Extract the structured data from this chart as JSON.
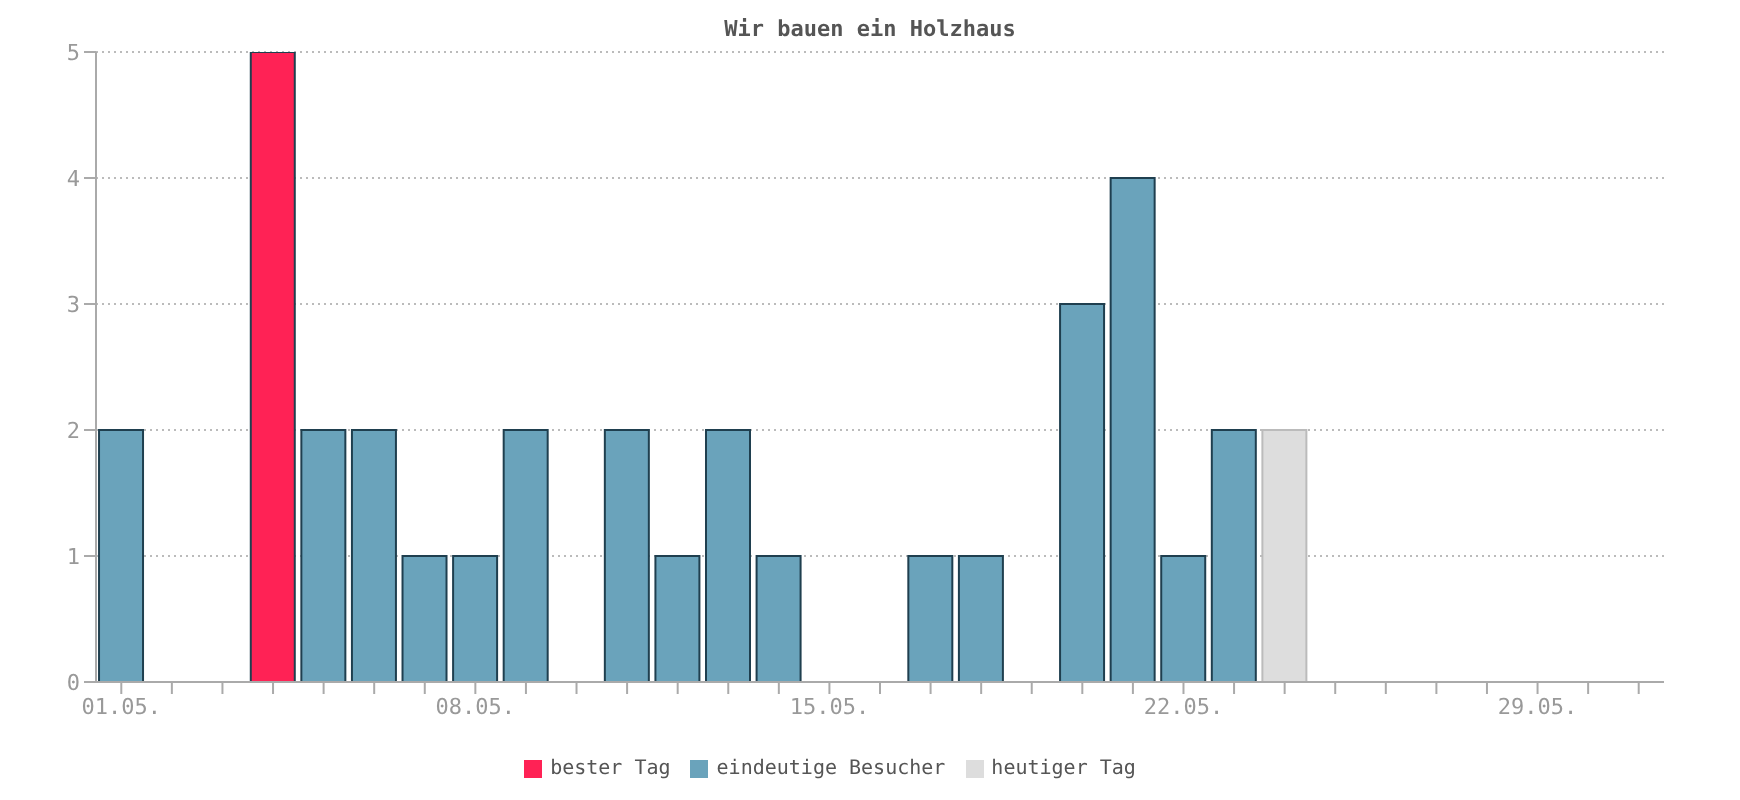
{
  "chart_data": {
    "type": "bar",
    "title": "Wir bauen ein Holzhaus",
    "categories": [
      "01.05.",
      null,
      null,
      null,
      null,
      null,
      null,
      "08.05.",
      null,
      null,
      null,
      null,
      null,
      null,
      "15.05.",
      null,
      null,
      null,
      null,
      null,
      null,
      "22.05.",
      null,
      null,
      null,
      null,
      null,
      null,
      "29.05.",
      null,
      null
    ],
    "series": [
      {
        "name": "eindeutige Besucher",
        "color": "#6aa3bb",
        "values": [
          2,
          null,
          null,
          null,
          2,
          2,
          1,
          1,
          2,
          null,
          2,
          1,
          2,
          1,
          null,
          null,
          1,
          1,
          null,
          3,
          4,
          1,
          2,
          null,
          null,
          null,
          null,
          null,
          null,
          null,
          null
        ]
      },
      {
        "name": "bester Tag",
        "color": "#ff2255",
        "values": [
          null,
          null,
          null,
          5,
          null,
          null,
          null,
          null,
          null,
          null,
          null,
          null,
          null,
          null,
          null,
          null,
          null,
          null,
          null,
          null,
          null,
          null,
          null,
          null,
          null,
          null,
          null,
          null,
          null,
          null,
          null
        ]
      },
      {
        "name": "heutiger Tag",
        "color": "#dddddd",
        "values": [
          null,
          null,
          null,
          null,
          null,
          null,
          null,
          null,
          null,
          null,
          null,
          null,
          null,
          null,
          null,
          null,
          null,
          null,
          null,
          null,
          null,
          null,
          null,
          2,
          null,
          null,
          null,
          null,
          null,
          null,
          null
        ]
      }
    ],
    "stacked": true,
    "ylim": [
      0,
      5
    ],
    "yticks": [
      0,
      1,
      2,
      3,
      4,
      5
    ],
    "grid": "y",
    "legend": "bottom"
  }
}
